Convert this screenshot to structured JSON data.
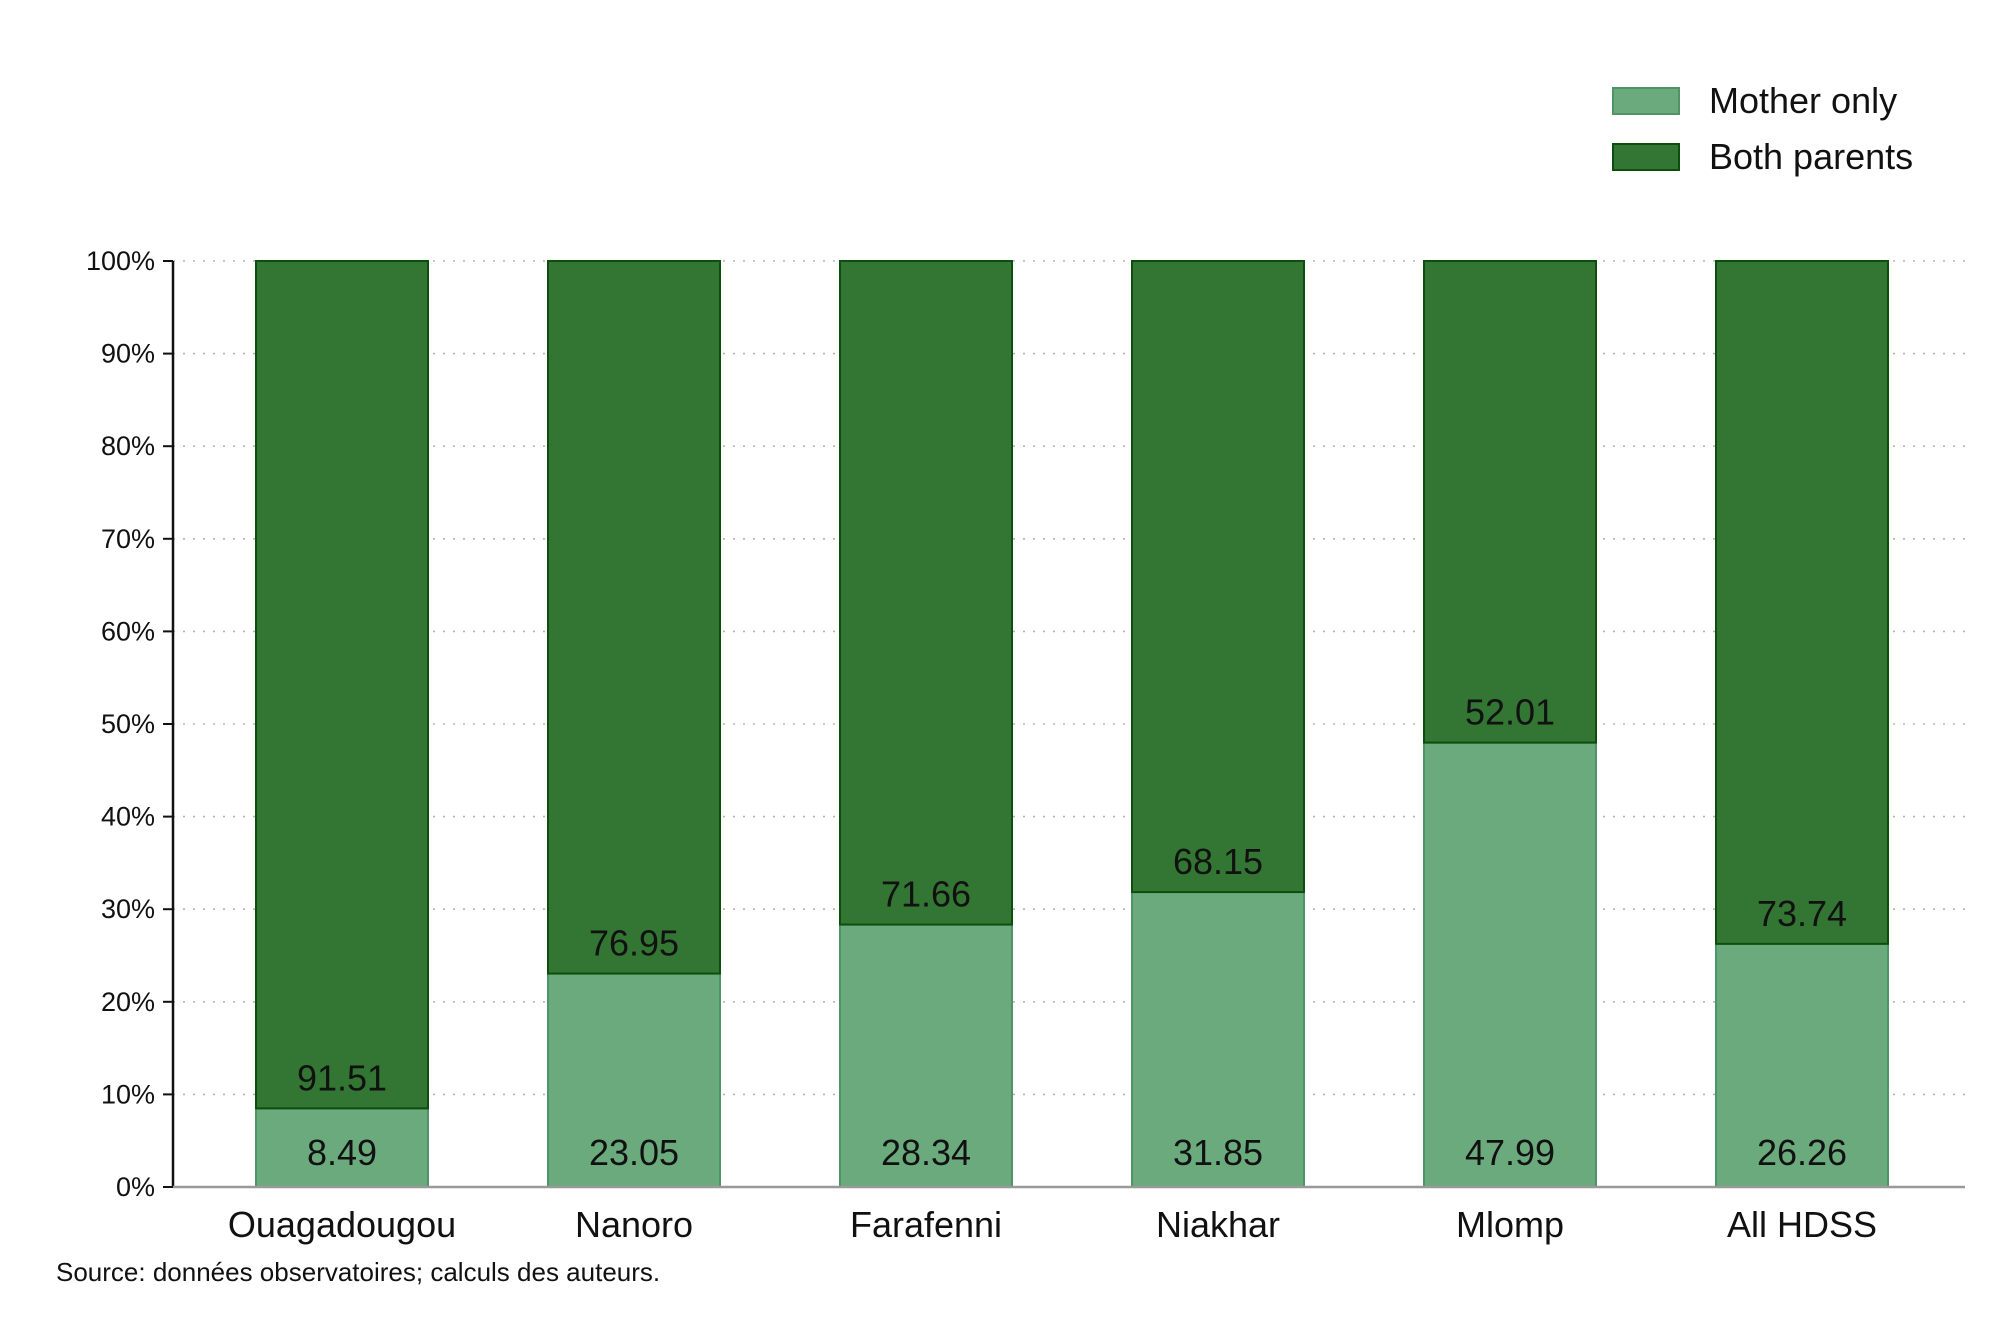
{
  "chart_data": {
    "type": "bar",
    "stacked": true,
    "categories": [
      "Ouagadougou",
      "Nanoro",
      "Farafenni",
      "Niakhar",
      "Mlomp",
      "All HDSS"
    ],
    "series": [
      {
        "name": "Mother only",
        "values": [
          8.49,
          23.05,
          28.34,
          31.85,
          47.99,
          26.26
        ],
        "color": "#6aaa7d",
        "stroke": "#4f9466"
      },
      {
        "name": "Both parents",
        "values": [
          91.51,
          76.95,
          71.66,
          68.15,
          52.01,
          73.74
        ],
        "color": "#337532",
        "stroke": "#0d4d0d"
      }
    ],
    "yticks": [
      "0%",
      "10%",
      "20%",
      "30%",
      "40%",
      "50%",
      "60%",
      "70%",
      "80%",
      "90%",
      "100%"
    ],
    "ylim": [
      0,
      100
    ],
    "grid": true,
    "legend_position": "top-right",
    "note": "Source: données observatoires; calculs des auteurs."
  }
}
